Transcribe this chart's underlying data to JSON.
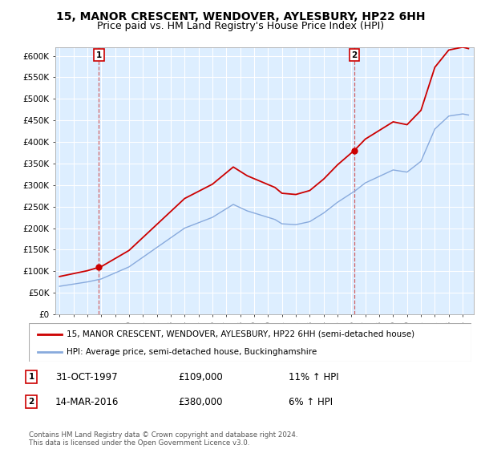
{
  "title": "15, MANOR CRESCENT, WENDOVER, AYLESBURY, HP22 6HH",
  "subtitle": "Price paid vs. HM Land Registry's House Price Index (HPI)",
  "ylim": [
    0,
    620000
  ],
  "yticks": [
    0,
    50000,
    100000,
    150000,
    200000,
    250000,
    300000,
    350000,
    400000,
    450000,
    500000,
    550000,
    600000
  ],
  "ytick_labels": [
    "£0",
    "£50K",
    "£100K",
    "£150K",
    "£200K",
    "£250K",
    "£300K",
    "£350K",
    "£400K",
    "£450K",
    "£500K",
    "£550K",
    "£600K"
  ],
  "xlim_start": 1994.7,
  "xlim_end": 2024.8,
  "sale1_date": 1997.83,
  "sale1_price": 109000,
  "sale1_label": "1",
  "sale2_date": 2016.2,
  "sale2_price": 380000,
  "sale2_label": "2",
  "legend_line1": "15, MANOR CRESCENT, WENDOVER, AYLESBURY, HP22 6HH (semi-detached house)",
  "legend_line2": "HPI: Average price, semi-detached house, Buckinghamshire",
  "row1_date": "31-OCT-1997",
  "row1_price": "£109,000",
  "row1_hpi": "11% ↑ HPI",
  "row2_date": "14-MAR-2016",
  "row2_price": "£380,000",
  "row2_hpi": "6% ↑ HPI",
  "footer": "Contains HM Land Registry data © Crown copyright and database right 2024.\nThis data is licensed under the Open Government Licence v3.0.",
  "line_color_red": "#cc0000",
  "line_color_blue": "#88aadd",
  "dashed_color": "#cc3333",
  "bg_color": "#ffffff",
  "plot_bg_color": "#ddeeff",
  "grid_color": "#ffffff",
  "title_fontsize": 10,
  "subtitle_fontsize": 9
}
